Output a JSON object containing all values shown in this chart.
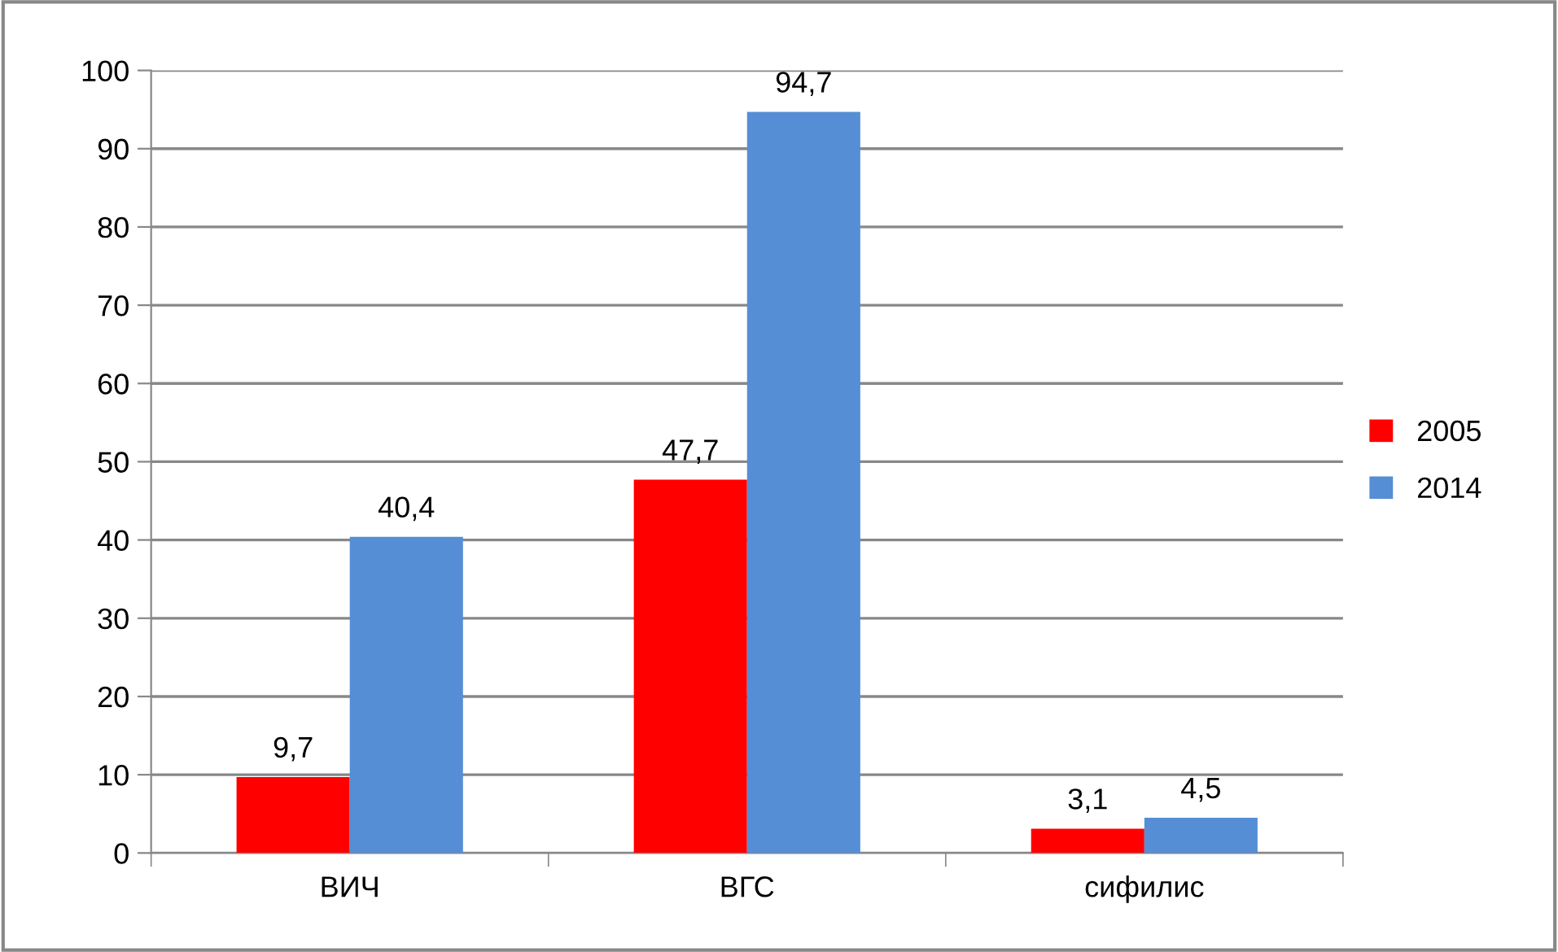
{
  "chart_data": {
    "type": "bar",
    "categories": [
      "ВИЧ",
      "ВГС",
      "сифилис"
    ],
    "series": [
      {
        "name": "2005",
        "color": "#ff0000",
        "values": [
          9.7,
          47.7,
          3.1
        ],
        "value_labels": [
          "9,7",
          "47,7",
          "3,1"
        ]
      },
      {
        "name": "2014",
        "color": "#558ed5",
        "values": [
          40.4,
          94.7,
          4.5
        ],
        "value_labels": [
          "40,4",
          "94,7",
          "4,5"
        ]
      }
    ],
    "ylim": [
      0,
      100
    ],
    "yticks": [
      0,
      10,
      20,
      30,
      40,
      50,
      60,
      70,
      80,
      90,
      100
    ],
    "grid": "y",
    "legend": "right"
  }
}
